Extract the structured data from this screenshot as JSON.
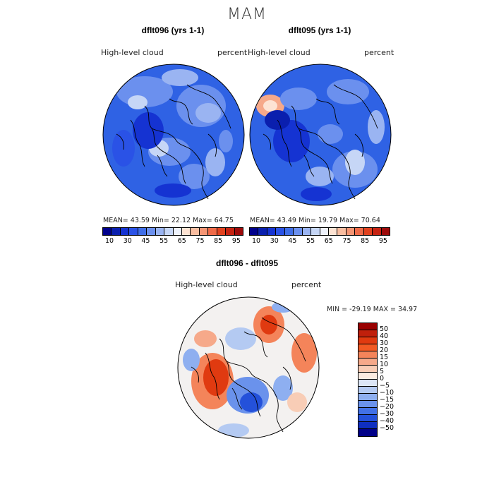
{
  "title": "MAM",
  "panels": [
    {
      "title": "dflt096 (yrs 1-1)",
      "field_label": "High-level  cloud",
      "units": "percent",
      "stats": {
        "mean": "43.59",
        "min": "22.12",
        "max": "64.75"
      },
      "stats_text": "MEAN=   43.59   Min=   22.12   Max=   64.75"
    },
    {
      "title": "dflt095 (yrs 1-1)",
      "field_label": "High-level  cloud",
      "units": "percent",
      "stats": {
        "mean": "43.49",
        "min": "19.79",
        "max": "70.64"
      },
      "stats_text": "MEAN=   43.49   Min=   19.79   Max=   70.64"
    }
  ],
  "abs_colorbar": {
    "ticks": [
      "10",
      "30",
      "45",
      "55",
      "65",
      "75",
      "85",
      "95"
    ],
    "colors": [
      "#00008b",
      "#0a1fae",
      "#1533d2",
      "#2a52e6",
      "#3f6ee8",
      "#6b90ee",
      "#9ab4f2",
      "#c6d6f6",
      "#eef2fb",
      "#fde3d3",
      "#f9bda0",
      "#f59574",
      "#ef6a48",
      "#e1421f",
      "#c62312",
      "#9d0a0a"
    ]
  },
  "diff_panel": {
    "title": "dflt096 - dflt095",
    "field_label": "High-level  cloud",
    "units": "percent",
    "stats_text": "MIN = -29.19  MAX =   34.97",
    "min": "-29.19",
    "max": "34.97"
  },
  "diff_colorbar": {
    "ticks": [
      "50",
      "40",
      "30",
      "20",
      "15",
      "10",
      "5",
      "0",
      "−5",
      "−10",
      "−15",
      "−20",
      "−30",
      "−40",
      "−50"
    ],
    "colors": [
      "#990000",
      "#c0200c",
      "#e03a10",
      "#f25a24",
      "#f4845a",
      "#f6a98a",
      "#f8cdb6",
      "#fbece2",
      "#dce6f7",
      "#b4caf2",
      "#8eaff0",
      "#6a92ec",
      "#4271e6",
      "#2451da",
      "#0f2fc0",
      "#000088"
    ]
  },
  "map_palette": {
    "ocean_abs": "#2f62e4",
    "diff_bg": "#f3f1f0"
  }
}
